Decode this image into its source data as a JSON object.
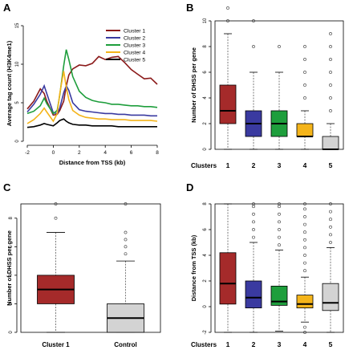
{
  "chart_data": [
    {
      "panel": "A",
      "type": "line",
      "xlabel": "Distance from TSS (kb)",
      "ylabel": "Average tag count (H3K4me1)",
      "xlim": [
        -2,
        8
      ],
      "ylim": [
        0,
        15
      ],
      "xticks": [
        -2,
        0,
        2,
        4,
        6,
        8
      ],
      "yticks": [
        0,
        5,
        10,
        15
      ],
      "legend_position": "top-right",
      "x": [
        -2,
        -1.5,
        -1,
        -0.7,
        -0.5,
        0,
        0.3,
        0.5,
        0.8,
        1,
        1.2,
        1.5,
        2,
        2.5,
        3,
        3.5,
        4,
        4.5,
        5,
        5.5,
        6,
        6.5,
        7,
        7.5,
        8
      ],
      "series": [
        {
          "name": "Cluster 1",
          "color": "#8B1A1A",
          "values": [
            4.2,
            5.2,
            6.8,
            6.2,
            5.2,
            3.4,
            3.5,
            4.0,
            5.2,
            7.2,
            8.6,
            9.4,
            9.9,
            9.8,
            10.1,
            11.0,
            10.6,
            10.9,
            11.0,
            10.2,
            9.3,
            8.7,
            8.1,
            8.2,
            7.4
          ]
        },
        {
          "name": "Cluster 2",
          "color": "#3A3AA0",
          "values": [
            3.8,
            4.8,
            6.1,
            7.2,
            6.2,
            3.7,
            3.6,
            4.3,
            6.3,
            7.2,
            6.6,
            5.0,
            4.1,
            3.9,
            3.8,
            3.7,
            3.6,
            3.6,
            3.5,
            3.5,
            3.4,
            3.4,
            3.4,
            3.3,
            3.3
          ]
        },
        {
          "name": "Cluster 3",
          "color": "#1E9E3C",
          "values": [
            3.6,
            3.9,
            4.6,
            5.6,
            4.9,
            3.6,
            4.0,
            6.0,
            9.8,
            11.9,
            10.6,
            8.4,
            6.5,
            5.7,
            5.3,
            5.1,
            5.0,
            4.8,
            4.8,
            4.7,
            4.6,
            4.6,
            4.5,
            4.5,
            4.4
          ]
        },
        {
          "name": "Cluster 4",
          "color": "#F4B41A",
          "values": [
            2.3,
            2.8,
            3.6,
            4.3,
            3.8,
            2.6,
            3.6,
            6.2,
            9.1,
            7.0,
            5.4,
            4.0,
            3.4,
            3.1,
            3.0,
            2.9,
            2.9,
            2.8,
            2.8,
            2.8,
            2.7,
            2.7,
            2.7,
            2.7,
            2.6
          ]
        },
        {
          "name": "Cluster 5",
          "color": "#000000",
          "values": [
            1.8,
            1.9,
            2.1,
            2.3,
            2.2,
            2.0,
            2.4,
            2.7,
            2.9,
            2.6,
            2.4,
            2.2,
            2.1,
            2.1,
            2.0,
            2.0,
            2.0,
            2.0,
            1.9,
            1.9,
            1.9,
            1.9,
            1.9,
            1.9,
            1.9
          ]
        }
      ]
    },
    {
      "panel": "B",
      "type": "boxplot",
      "ylabel": "Number of DHSS per gene",
      "row_label": "Clusters",
      "categories": [
        "1",
        "2",
        "3",
        "4",
        "5"
      ],
      "ylim": [
        0,
        10
      ],
      "yticks": [
        0,
        2,
        4,
        6,
        8,
        10
      ],
      "boxes": [
        {
          "min": 0,
          "q1": 2,
          "median": 3,
          "q3": 5,
          "max": 9,
          "outliers": [
            10,
            11
          ],
          "color": "#A52A2A"
        },
        {
          "min": 0,
          "q1": 1,
          "median": 2,
          "q3": 3,
          "max": 6,
          "outliers": [
            8,
            10
          ],
          "color": "#3A3AA0"
        },
        {
          "min": 0,
          "q1": 1,
          "median": 2,
          "q3": 3,
          "max": 6,
          "outliers": [
            8
          ],
          "color": "#1E9E3C"
        },
        {
          "min": 0,
          "q1": 1,
          "median": 1,
          "q3": 2,
          "max": 3,
          "outliers": [
            4,
            5,
            6,
            7,
            8
          ],
          "color": "#F4B41A"
        },
        {
          "min": 0,
          "q1": 0,
          "median": 0,
          "q3": 1,
          "max": 2,
          "outliers": [
            3,
            4,
            5,
            6,
            7,
            8,
            9
          ],
          "color": "#D3D3D3"
        }
      ]
    },
    {
      "panel": "C",
      "type": "boxplot",
      "ylabel": "Number of DHSS per gene",
      "categories": [
        "Cluster 1",
        "Control"
      ],
      "ylim": [
        0,
        9
      ],
      "yticks": [
        0,
        2,
        4,
        6,
        8
      ],
      "boxes": [
        {
          "min": 0,
          "q1": 2,
          "median": 3,
          "q3": 4,
          "max": 7,
          "outliers": [
            8,
            9
          ],
          "color": "#A52A2A"
        },
        {
          "min": 0,
          "q1": 0,
          "median": 1,
          "q3": 2,
          "max": 5,
          "outliers": [
            5.5,
            6,
            6.5,
            7,
            9
          ],
          "color": "#D3D3D3"
        }
      ]
    },
    {
      "panel": "D",
      "type": "boxplot",
      "ylabel": "Distance from TSS (kb)",
      "row_label": "Clusters",
      "categories": [
        "1",
        "2",
        "3",
        "4",
        "5"
      ],
      "ylim": [
        -2,
        8
      ],
      "yticks": [
        -2,
        0,
        2,
        4,
        6,
        8
      ],
      "boxes": [
        {
          "min": -2,
          "q1": 0.2,
          "median": 1.8,
          "q3": 4.2,
          "max": 8,
          "outliers": [],
          "color": "#A52A2A"
        },
        {
          "min": -2,
          "q1": -0.1,
          "median": 0.7,
          "q3": 2.0,
          "max": 5.0,
          "outliers": [
            5.4,
            6.0,
            6.6,
            7.2,
            7.8,
            8.0
          ],
          "color": "#3A3AA0"
        },
        {
          "min": -1.9,
          "q1": 0.1,
          "median": 0.4,
          "q3": 1.6,
          "max": 4.4,
          "outliers": [
            4.8,
            5.4,
            6.0,
            6.6,
            7.2,
            7.8,
            8.0
          ],
          "color": "#1E9E3C"
        },
        {
          "min": -1.2,
          "q1": -0.1,
          "median": 0.2,
          "q3": 0.9,
          "max": 2.3,
          "outliers": [
            -1.6,
            -2.0,
            2.8,
            3.4,
            4.0,
            4.6,
            5.2,
            5.8,
            6.4,
            7.0,
            7.6,
            8.0
          ],
          "color": "#F4B41A"
        },
        {
          "min": -2,
          "q1": -0.3,
          "median": 0.3,
          "q3": 1.8,
          "max": 4.6,
          "outliers": [
            5.0,
            5.6,
            6.2,
            6.8,
            7.4,
            8.0
          ],
          "color": "#D3D3D3"
        }
      ]
    }
  ]
}
